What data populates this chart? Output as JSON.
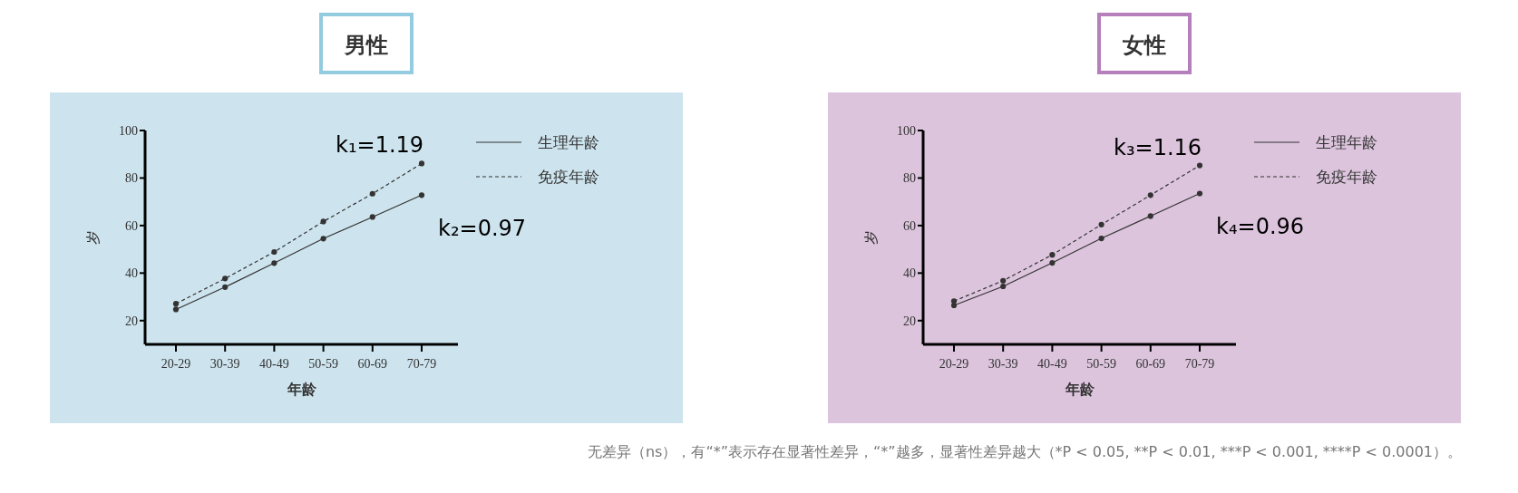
{
  "chart_data": [
    {
      "type": "line",
      "title": "男性",
      "categories": [
        "20-29",
        "30-39",
        "40-49",
        "50-59",
        "60-69",
        "70-79"
      ],
      "xlabel": "年龄",
      "ylabel": "岁",
      "ylim": [
        10,
        100
      ],
      "yticks": [
        20,
        40,
        60,
        80,
        100
      ],
      "marker": "circle",
      "legend": "top right",
      "grid": false,
      "series": [
        {
          "name": "生理年龄",
          "color": "#333333",
          "line_style": "solid",
          "values": [
            24.7,
            34.1,
            44.2,
            54.5,
            63.6,
            72.8
          ]
        },
        {
          "name": "免疫年龄",
          "color": "#333333",
          "line_style": "dashed",
          "values": [
            27.1,
            37.7,
            48.9,
            61.7,
            73.4,
            86.1
          ]
        }
      ],
      "annotations": [
        {
          "text": "k₁=1.19",
          "x": "70-79",
          "y": 86.1
        },
        {
          "text": "k₂=0.97",
          "x": "70-79",
          "y": 72.8
        }
      ]
    },
    {
      "type": "line",
      "title": "女性",
      "categories": [
        "20-29",
        "30-39",
        "40-49",
        "50-59",
        "60-69",
        "70-79"
      ],
      "xlabel": "年龄",
      "ylabel": "岁",
      "ylim": [
        10,
        100
      ],
      "yticks": [
        20,
        40,
        60,
        80,
        100
      ],
      "marker": "circle",
      "legend": "top right",
      "grid": false,
      "series": [
        {
          "name": "生理年龄",
          "color": "#333333",
          "line_style": "solid",
          "values": [
            26.4,
            34.4,
            44.3,
            54.6,
            64.0,
            73.5
          ]
        },
        {
          "name": "免疫年龄",
          "color": "#333333",
          "line_style": "dashed",
          "values": [
            28.2,
            36.8,
            47.7,
            60.4,
            72.8,
            85.3
          ]
        }
      ],
      "annotations": [
        {
          "text": "k₃=1.16",
          "x": "70-79",
          "y": 85.3
        },
        {
          "text": "k₄=0.96",
          "x": "70-79",
          "y": 73.5
        },
        "无差异（ns），有“*”表示存在显著性差异，“*”越多，显著性差异越大（*P < 0.05, **P < 0.01, ***P < 0.001, ****P < 0.0001）。"
      ]
    }
  ]
}
